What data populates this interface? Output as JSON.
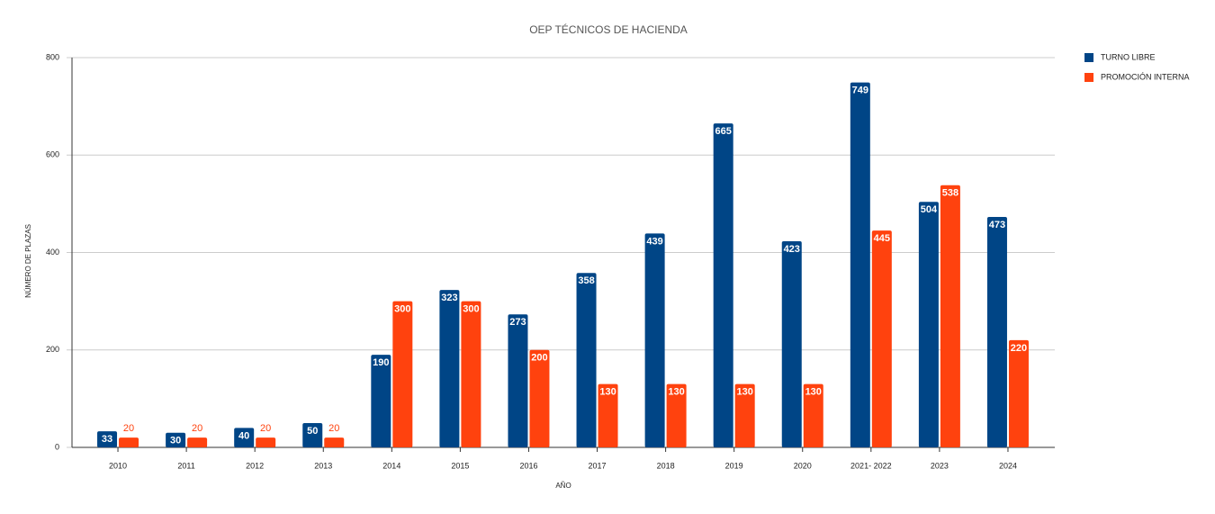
{
  "chart_data": {
    "type": "bar",
    "title": "OEP TÉCNICOS DE HACIENDA",
    "x_label": "AÑO",
    "y_label": "NÚMERO DE PLAZAS",
    "categories": [
      "2010",
      "2011",
      "2012",
      "2013",
      "2014",
      "2015",
      "2016",
      "2017",
      "2018",
      "2019",
      "2020",
      "2021- 2022",
      "2023",
      "2024"
    ],
    "series": [
      {
        "name": "TURNO LIBRE",
        "color": "#004586",
        "values": [
          33,
          30,
          40,
          50,
          190,
          323,
          273,
          358,
          439,
          665,
          423,
          749,
          504,
          473
        ]
      },
      {
        "name": "PROMOCIÓN INTERNA",
        "color": "#ff420e",
        "values": [
          20,
          20,
          20,
          20,
          300,
          300,
          200,
          130,
          130,
          130,
          130,
          445,
          538,
          220
        ]
      }
    ],
    "ylim": [
      0,
      800
    ],
    "yticks": [
      0,
      200,
      400,
      600,
      800
    ],
    "grid": true,
    "legend": "top-right"
  }
}
